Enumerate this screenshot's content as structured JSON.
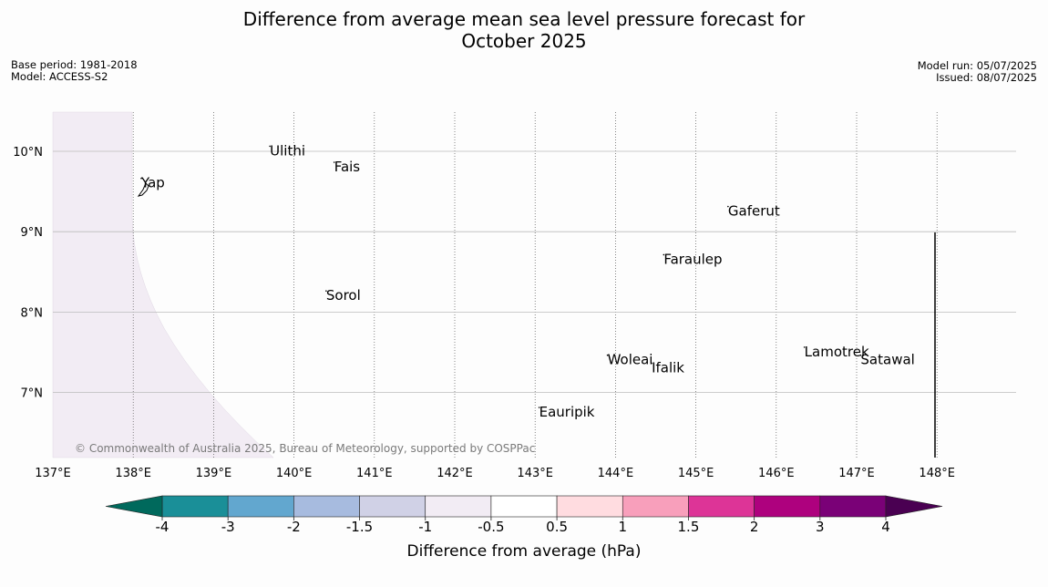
{
  "title": "Difference from average mean sea level pressure forecast for\nOctober 2025",
  "title_line1": "Difference from average mean sea level pressure forecast for",
  "title_line2": "October 2025",
  "meta_left": {
    "base_period": "Base period: 1981-2018",
    "model": "Model: ACCESS-S2"
  },
  "meta_right": {
    "model_run": "Model run: 05/07/2025",
    "issued": "Issued: 08/07/2025"
  },
  "copyright": "© Commonwealth of Australia 2025, Bureau of Meteorology, supported by COSPPac",
  "map": {
    "lon_range": [
      137,
      149
    ],
    "lat_range": [
      6.2,
      10.5
    ],
    "lon_ticks": [
      {
        "value": 137,
        "label": "137°E"
      },
      {
        "value": 138,
        "label": "138°E"
      },
      {
        "value": 139,
        "label": "139°E"
      },
      {
        "value": 140,
        "label": "140°E"
      },
      {
        "value": 141,
        "label": "141°E"
      },
      {
        "value": 142,
        "label": "142°E"
      },
      {
        "value": 143,
        "label": "143°E"
      },
      {
        "value": 144,
        "label": "144°E"
      },
      {
        "value": 145,
        "label": "145°E"
      },
      {
        "value": 146,
        "label": "146°E"
      },
      {
        "value": 147,
        "label": "147°E"
      },
      {
        "value": 148,
        "label": "148°E"
      }
    ],
    "lat_ticks": [
      {
        "value": 10,
        "label": "10°N"
      },
      {
        "value": 9,
        "label": "9°N"
      },
      {
        "value": 8,
        "label": "8°N"
      },
      {
        "value": 7,
        "label": "7°N"
      }
    ],
    "places": [
      {
        "name": "Yap",
        "lon": 138.1,
        "lat": 9.55
      },
      {
        "name": "Ulithi",
        "lon": 139.7,
        "lat": 9.95
      },
      {
        "name": "Fais",
        "lon": 140.5,
        "lat": 9.75
      },
      {
        "name": "Gaferut",
        "lon": 145.4,
        "lat": 9.2
      },
      {
        "name": "Faraulep",
        "lon": 144.6,
        "lat": 8.6
      },
      {
        "name": "Sorol",
        "lon": 140.4,
        "lat": 8.15
      },
      {
        "name": "Woleai",
        "lon": 143.9,
        "lat": 7.35
      },
      {
        "name": "Ifalik",
        "lon": 144.45,
        "lat": 7.25
      },
      {
        "name": "Lamotrek",
        "lon": 146.35,
        "lat": 7.45
      },
      {
        "name": "Satawal",
        "lon": 147.05,
        "lat": 7.35
      },
      {
        "name": "Eauripik",
        "lon": 143.05,
        "lat": 6.7
      }
    ],
    "shading": {
      "color": "#f2ecf4",
      "bin": "-1 to -0.5 hPa"
    }
  },
  "colorbar": {
    "label": "Difference from average (hPa)",
    "ticks": [
      "-4",
      "-3",
      "-2",
      "-1.5",
      "-1",
      "-0.5",
      "0.5",
      "1",
      "1.5",
      "2",
      "3",
      "4"
    ],
    "under_color": "#00695c",
    "over_color": "#4a0052",
    "colors": [
      "#1a8f98",
      "#62a7cf",
      "#a7bbdf",
      "#d0d1e6",
      "#f2ecf4",
      "#ffffff",
      "#ffdce0",
      "#f89fbb",
      "#dd3497",
      "#ae017e",
      "#7a0177"
    ]
  }
}
